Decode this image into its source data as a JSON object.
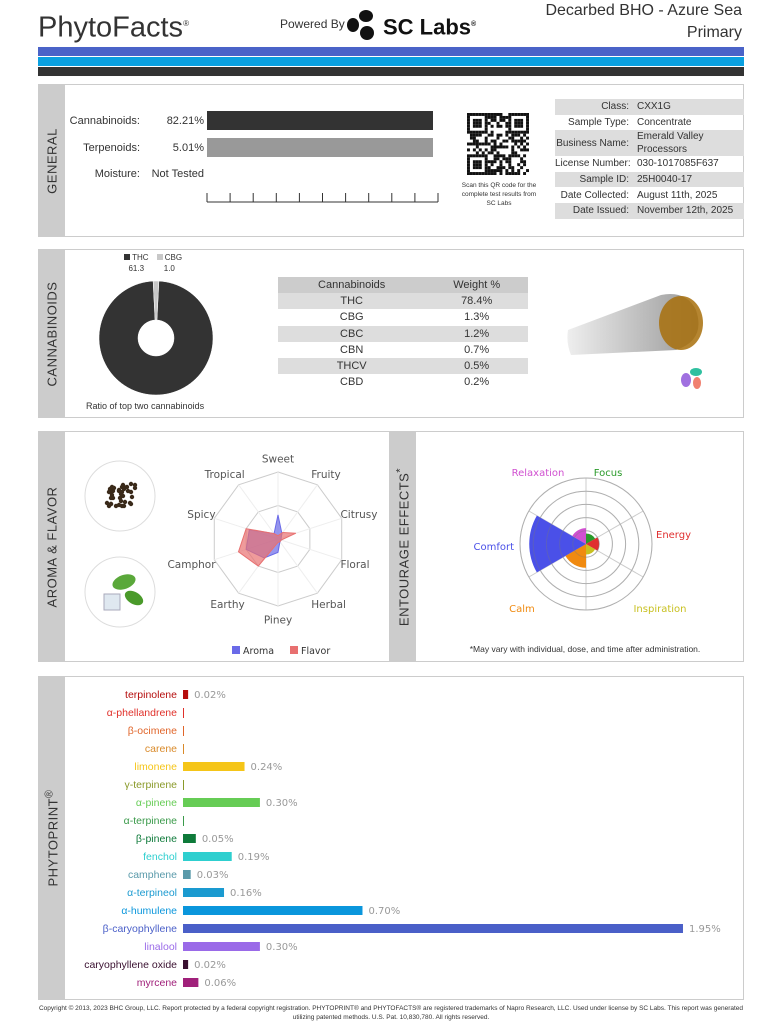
{
  "header": {
    "logo": "PhytoFacts",
    "logo_mark": "®",
    "powered_by": "Powered By",
    "lab": "SC Labs",
    "lab_mark": "®",
    "product": "Decarbed BHO - Azure Sea",
    "variant": "Primary"
  },
  "colors": {
    "stripe1": "#4a63c8",
    "stripe2": "#0aa0e0",
    "stripe3": "#333333"
  },
  "general": {
    "section": "GENERAL",
    "cannabinoids_label": "Cannabinoids:",
    "cannabinoids_value": "82.21%",
    "cannabinoids_pct": 82.21,
    "terpenoids_label": "Terpenoids:",
    "terpenoids_value": "5.01%",
    "terpenoids_pct": 5.01,
    "moisture_label": "Moisture:",
    "moisture_value": "Not Tested",
    "qr_caption": "Scan this QR code for the complete test results from SC Labs",
    "info": [
      {
        "k": "Class:",
        "v": "CXX1G"
      },
      {
        "k": "Sample Type:",
        "v": "Concentrate"
      },
      {
        "k": "Business Name:",
        "v": "Emerald Valley Processors"
      },
      {
        "k": "License Number:",
        "v": "030-1017085F637"
      },
      {
        "k": "Sample ID:",
        "v": "25H0040-17"
      },
      {
        "k": "Date Collected:",
        "v": "August 11th, 2025"
      },
      {
        "k": "Date Issued:",
        "v": "November 12th, 2025"
      }
    ]
  },
  "cannabinoids": {
    "section": "CANNABINOIDS",
    "donut_caption": "Ratio of top two cannabinoids",
    "donut": [
      {
        "name": "THC",
        "value": "61.3",
        "n": 61.3,
        "color": "#333333"
      },
      {
        "name": "CBG",
        "value": "1.0",
        "n": 1.0,
        "color": "#c8c8c8"
      }
    ],
    "table_headers": [
      "Cannabinoids",
      "Weight %"
    ],
    "rows": [
      [
        "THC",
        "78.4%"
      ],
      [
        "CBG",
        "1.3%"
      ],
      [
        "CBC",
        "1.2%"
      ],
      [
        "CBN",
        "0.7%"
      ],
      [
        "THCV",
        "0.5%"
      ],
      [
        "CBD",
        "0.2%"
      ]
    ]
  },
  "aroma": {
    "section": "AROMA & FLAVOR",
    "chart_data": {
      "type": "radar",
      "axes": [
        "Sweet",
        "Fruity",
        "Citrusy",
        "Floral",
        "Herbal",
        "Piney",
        "Earthy",
        "Camphor",
        "Spicy",
        "Tropical"
      ],
      "range": [
        0,
        1
      ],
      "series": [
        {
          "name": "Aroma",
          "color": "#6a6ae8",
          "values": [
            0.36,
            0.1,
            0.05,
            0.05,
            0.05,
            0.2,
            0.35,
            0.5,
            0.45,
            0.1
          ]
        },
        {
          "name": "Flavor",
          "color": "#e87070",
          "values": [
            0.05,
            0.12,
            0.28,
            0.05,
            0.05,
            0.05,
            0.5,
            0.62,
            0.5,
            0.1
          ]
        }
      ],
      "legend": "bottom"
    }
  },
  "entourage": {
    "section": "ENTOURAGE EFFECTS",
    "section_mark": "*",
    "note": "*May vary with individual, dose, and time after administration.",
    "chart_data": {
      "type": "polar-area",
      "range": [
        0,
        5
      ],
      "categories": [
        "Focus",
        "Energy",
        "Inspiration",
        "Calm",
        "Comfort",
        "Relaxation"
      ],
      "values": [
        0.8,
        1.0,
        0.8,
        1.8,
        4.3,
        1.2
      ],
      "colors": [
        "#2a9a2a",
        "#e03030",
        "#c8c020",
        "#f08a10",
        "#4a50e8",
        "#d050d0"
      ]
    }
  },
  "phytoprint": {
    "section": "PHYTOPRINT",
    "section_mark": "®",
    "chart_data": {
      "type": "bar",
      "orientation": "horizontal",
      "unit": "%",
      "items": [
        {
          "name": "terpinolene",
          "value": 0.02,
          "label": "0.02%",
          "color": "#b50d0d"
        },
        {
          "name": "α-phellandrene",
          "value": 0,
          "label": "",
          "color": "#e0302a"
        },
        {
          "name": "β-ocimene",
          "value": 0,
          "label": "",
          "color": "#e0652a"
        },
        {
          "name": "carene",
          "value": 0,
          "label": "",
          "color": "#d98a2a"
        },
        {
          "name": "limonene",
          "value": 0.24,
          "label": "0.24%",
          "color": "#f5c518"
        },
        {
          "name": "γ-terpinene",
          "value": 0,
          "label": "",
          "color": "#8a9a2a"
        },
        {
          "name": "α-pinene",
          "value": 0.3,
          "label": "0.30%",
          "color": "#66cc55"
        },
        {
          "name": "α-terpinene",
          "value": 0,
          "label": "",
          "color": "#3a9a4a"
        },
        {
          "name": "β-pinene",
          "value": 0.05,
          "label": "0.05%",
          "color": "#0e7a3a"
        },
        {
          "name": "fenchol",
          "value": 0.19,
          "label": "0.19%",
          "color": "#2ecfcf"
        },
        {
          "name": "camphene",
          "value": 0.03,
          "label": "0.03%",
          "color": "#5a9aaa"
        },
        {
          "name": "α-terpineol",
          "value": 0.16,
          "label": "0.16%",
          "color": "#1a9ad0"
        },
        {
          "name": "α-humulene",
          "value": 0.7,
          "label": "0.70%",
          "color": "#0a96dc"
        },
        {
          "name": "β-caryophyllene",
          "value": 1.95,
          "label": "1.95%",
          "color": "#4a5fc8"
        },
        {
          "name": "linalool",
          "value": 0.3,
          "label": "0.30%",
          "color": "#9a6ae8"
        },
        {
          "name": "caryophyllene oxide",
          "value": 0.02,
          "label": "0.02%",
          "color": "#3a1030"
        },
        {
          "name": "myrcene",
          "value": 0.06,
          "label": "0.06%",
          "color": "#a0207a"
        }
      ]
    }
  },
  "footer": "Copyright © 2013, 2023 BHC Group, LLC. Report protected by a federal copyright registration. PHYTOPRINT® and PHYTOFACTS® are registered trademarks of Napro Research, LLC. Used under license by SC Labs. This report was generated utilizing patented methods. U.S. Pat. 10,830,780. All rights reserved."
}
